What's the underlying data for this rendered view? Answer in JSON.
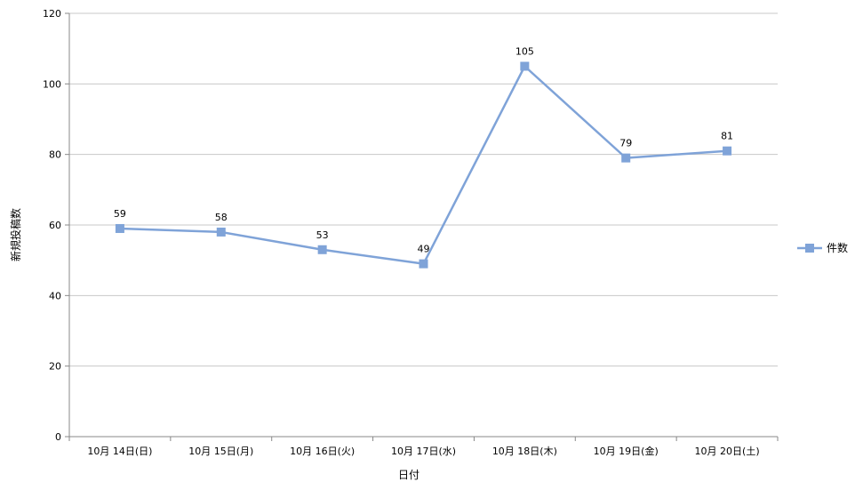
{
  "chart_data": {
    "type": "line",
    "title": "",
    "xlabel": "日付",
    "ylabel": "新規投稿数",
    "categories": [
      "10月 14日(日)",
      "10月 15日(月)",
      "10月 16日(火)",
      "10月 17日(水)",
      "10月 18日(木)",
      "10月 19日(金)",
      "10月 20日(土)"
    ],
    "series": [
      {
        "name": "件数",
        "values": [
          59,
          58,
          53,
          49,
          105,
          79,
          81
        ],
        "color": "#7fa3d8",
        "marker": "square"
      }
    ],
    "ylim": [
      0,
      120
    ],
    "yticks": [
      0,
      20,
      40,
      60,
      80,
      100,
      120
    ],
    "grid": true,
    "legend_position": "right",
    "data_labels": true
  }
}
